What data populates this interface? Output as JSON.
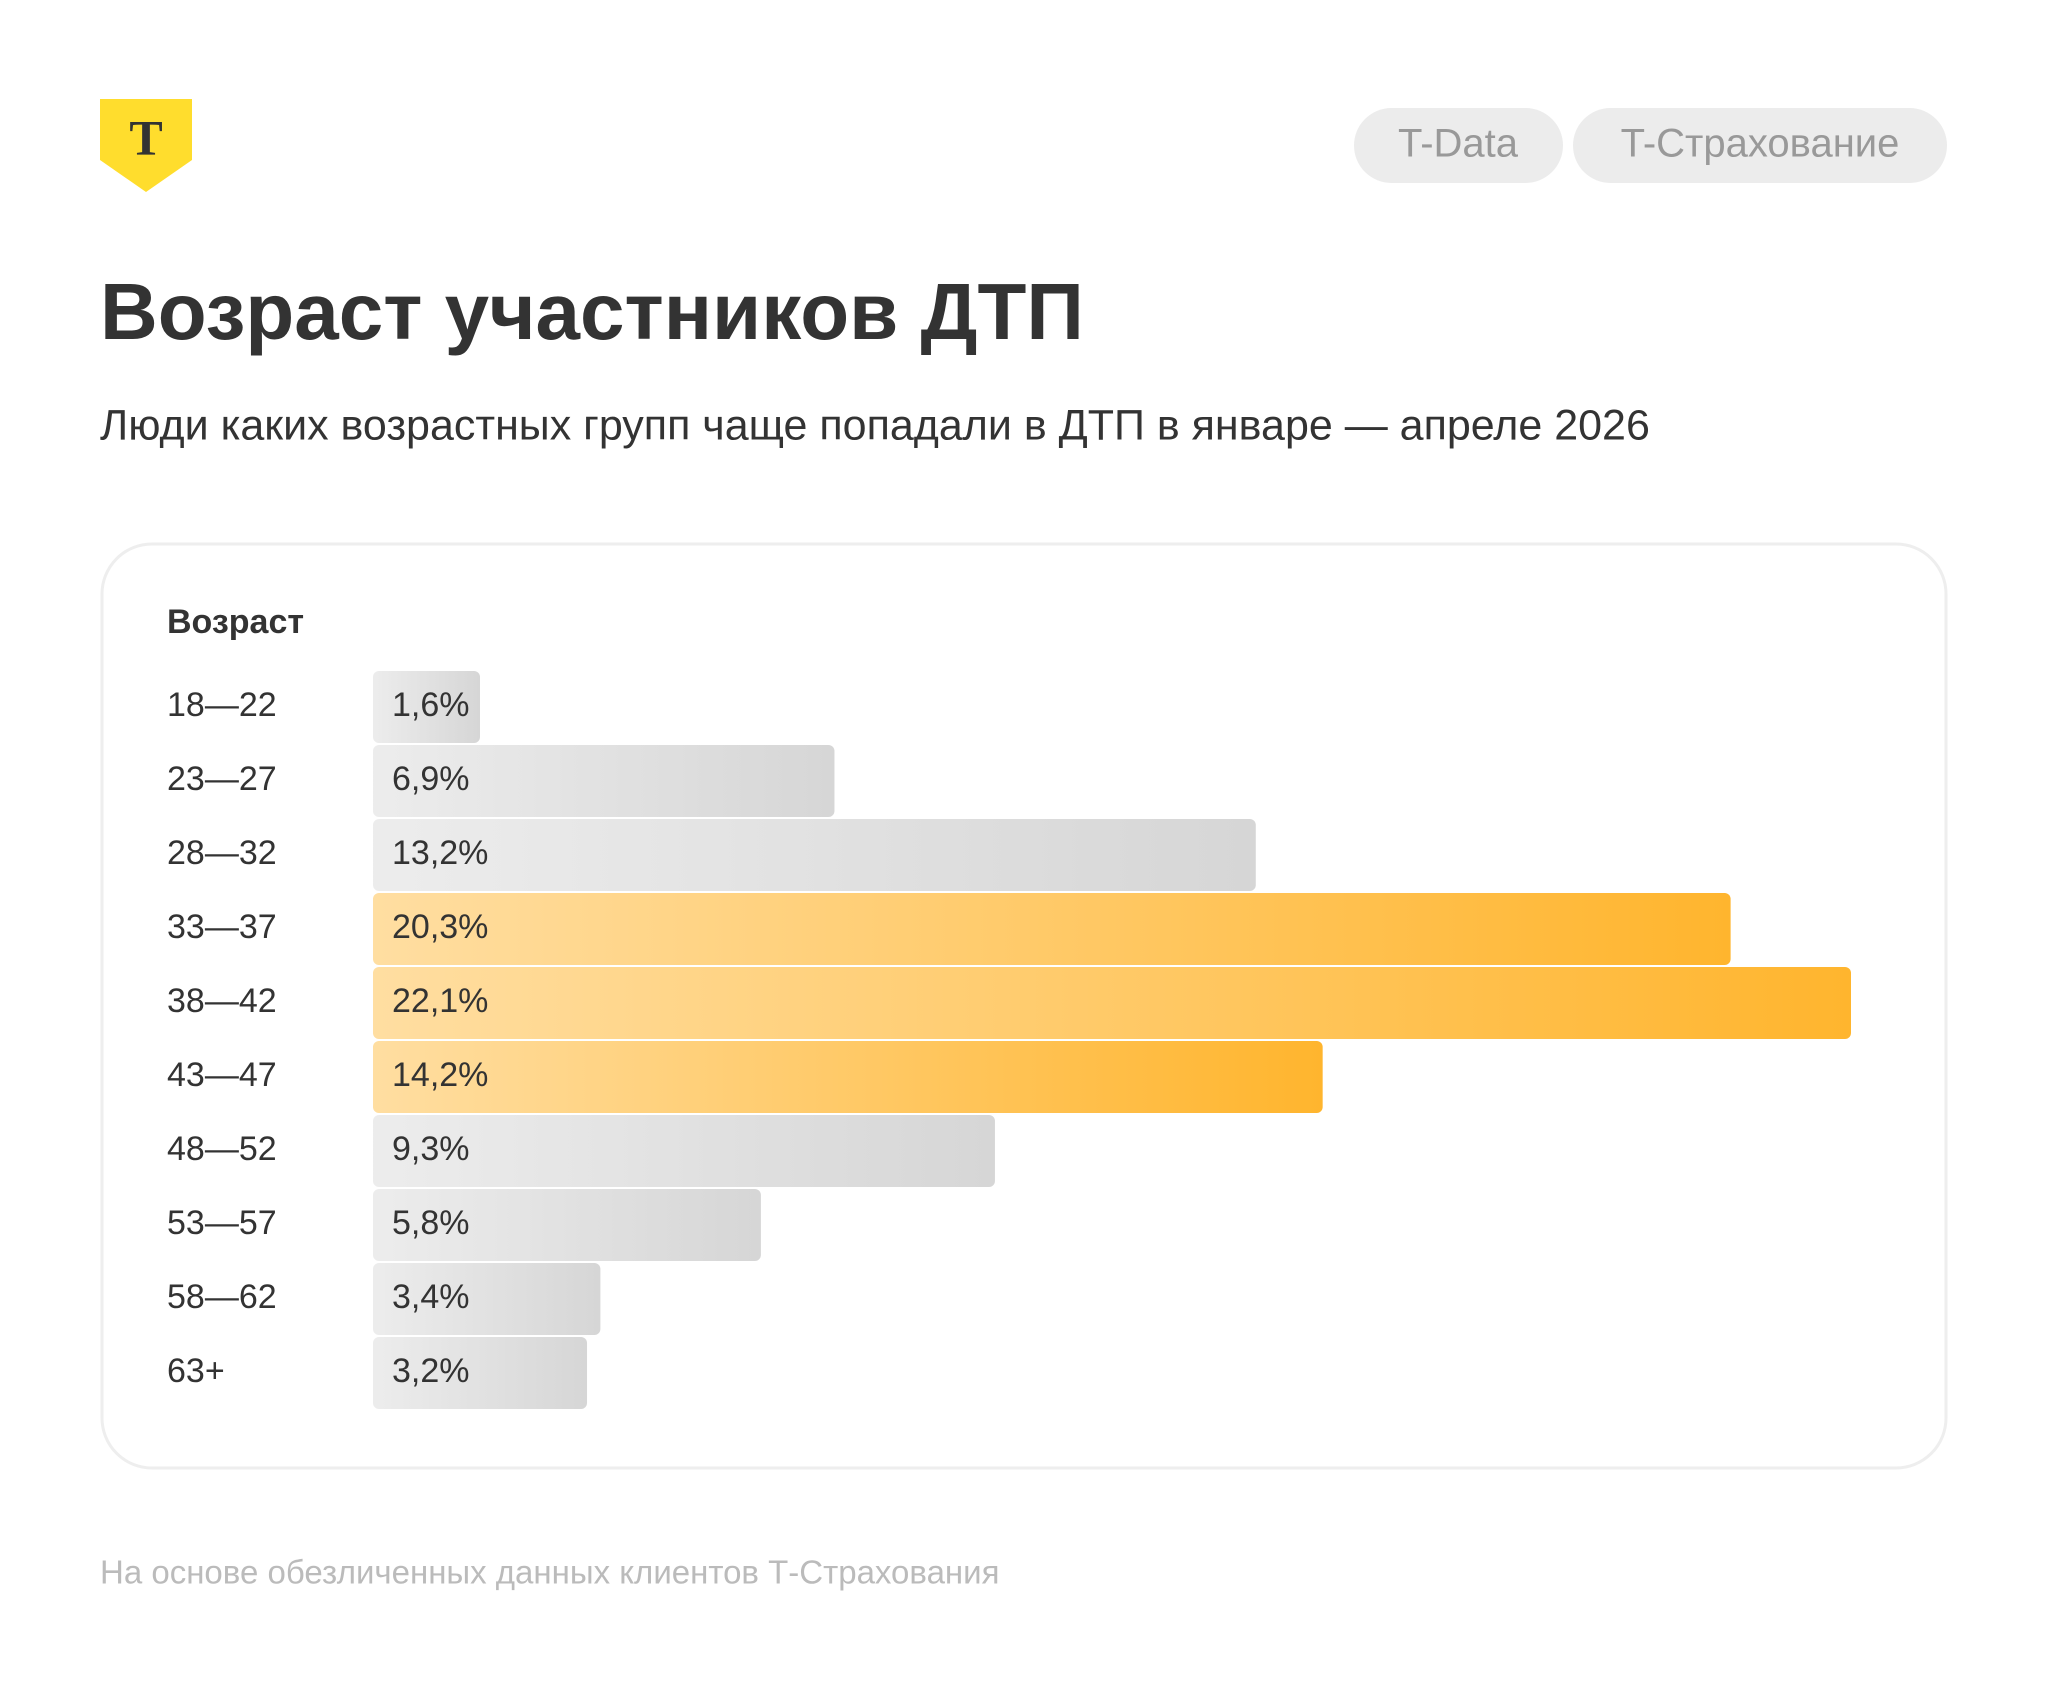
{
  "logo": "Т",
  "tags": [
    "T-Data",
    "T-Страхование"
  ],
  "chart_data": {
    "type": "bar",
    "orientation": "horizontal",
    "title": "Возраст участников ДТП",
    "subtitle": "Люди каких возрастных групп чаще попадали в ДТП в январе — апреле 2026",
    "y_label": "Возраст",
    "categories": [
      "18—22",
      "23—27",
      "28—32",
      "33—37",
      "38—42",
      "43—47",
      "48—52",
      "53—57",
      "58—62",
      "63+"
    ],
    "values": [
      1.6,
      6.9,
      13.2,
      20.3,
      22.1,
      14.2,
      9.3,
      5.8,
      3.4,
      3.2
    ],
    "value_labels": [
      "1,6%",
      "6,9%",
      "13,2%",
      "20,3%",
      "22,1%",
      "14,2%",
      "9,3%",
      "5,8%",
      "3,4%",
      "3,2%"
    ],
    "colors": [
      "#d6d6d6",
      "#d6d6d6",
      "#d6d6d6",
      "#ffb52e",
      "#ffb52e",
      "#ffb52e",
      "#d6d6d6",
      "#d6d6d6",
      "#d6d6d6",
      "#d6d6d6"
    ],
    "footnote": "На основе обезличенных данных клиентов Т-Страхования"
  }
}
